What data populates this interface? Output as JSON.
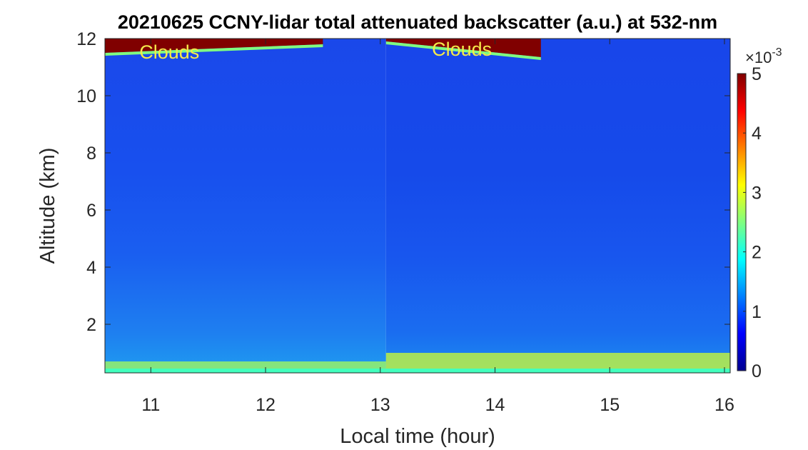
{
  "chart_data": {
    "type": "heatmap",
    "title": "20210625 CCNY-lidar total attenuated backscatter (a.u.) at 532-nm",
    "xlabel": "Local time (hour)",
    "ylabel": "Altitude (km)",
    "xlim": [
      10.6,
      16.05
    ],
    "ylim": [
      0.3,
      12
    ],
    "xticks": [
      11,
      12,
      13,
      14,
      15,
      16
    ],
    "yticks": [
      2,
      4,
      6,
      8,
      10,
      12
    ],
    "colorbar": {
      "min": 0,
      "max": 5,
      "ticks": [
        0,
        1,
        2,
        3,
        4,
        5
      ],
      "exponent_label": "×10",
      "exponent_value": "-3",
      "colormap": "jet"
    },
    "annotations": [
      {
        "text": "Clouds",
        "x": 10.9,
        "y": 11.3
      },
      {
        "text": "Clouds",
        "x": 13.45,
        "y": 11.4
      }
    ],
    "cloud_layers": [
      {
        "x_start": 10.6,
        "x_end": 12.5,
        "base_km_start": 11.5,
        "base_km_end": 11.8,
        "top_km": 12,
        "value": 5
      },
      {
        "x_start": 13.05,
        "x_end": 14.4,
        "base_km_start": 11.9,
        "base_km_end": 11.35,
        "top_km": 12,
        "value": 5
      }
    ],
    "boundary_layer": [
      {
        "x_start": 10.6,
        "x_end": 13.05,
        "top_km": 0.7,
        "value": 2.7
      },
      {
        "x_start": 13.05,
        "x_end": 16.05,
        "top_km": 1.0,
        "value": 2.9
      }
    ],
    "background_profile_km_value": [
      [
        0.3,
        1.9
      ],
      [
        1,
        1.7
      ],
      [
        2,
        1.5
      ],
      [
        3,
        1.2
      ],
      [
        4,
        1.05
      ],
      [
        6,
        0.9
      ],
      [
        8,
        0.8
      ],
      [
        10,
        0.78
      ],
      [
        12,
        0.75
      ]
    ]
  }
}
